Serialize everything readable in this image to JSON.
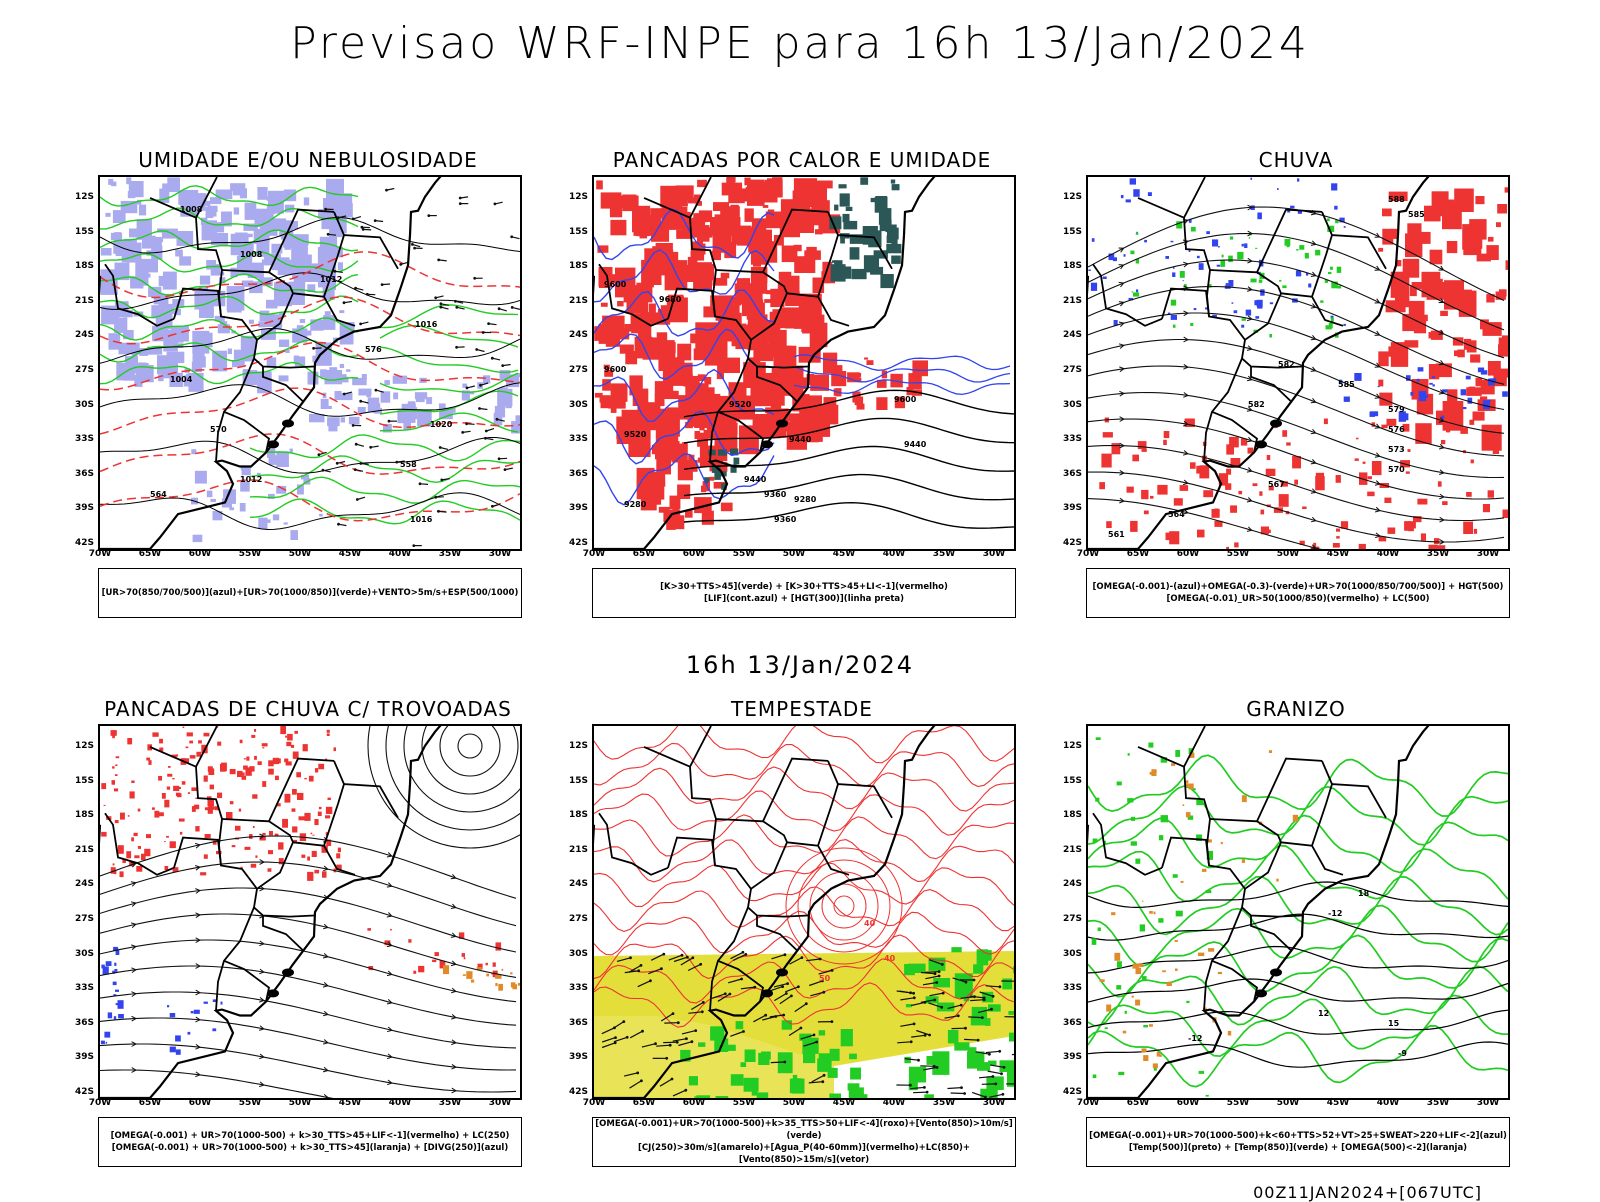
{
  "title": "Previsao WRF-INPE  para 16h 13/Jan/2024",
  "mid_title": "16h 13/Jan/2024",
  "footer": "00Z11JAN2024+[067UTC]",
  "lat_ticks": [
    "12S",
    "15S",
    "18S",
    "21S",
    "24S",
    "27S",
    "30S",
    "33S",
    "36S",
    "39S",
    "42S"
  ],
  "lon_ticks": [
    "70W",
    "65W",
    "60W",
    "55W",
    "50W",
    "45W",
    "40W",
    "35W",
    "30W"
  ],
  "colors": {
    "green": "#22cc22",
    "red": "#ee3333",
    "blue": "#3344ee",
    "lavender": "#aaaaee",
    "yellow": "#e4de3a",
    "darkteal": "#2b5757",
    "orange": "#e08a2a"
  },
  "panels": [
    {
      "title": "UMIDADE E/OU NEBULOSIDADE",
      "legend": [
        "[UR>70(850/700/500)](azul)+[UR>70(1000/850)](verde)+VENTO>5m/s+ESP(500/1000)"
      ],
      "contour_labels": [
        "1008",
        "1008",
        "1012",
        "1016",
        "1020",
        "1016",
        "1004",
        "576",
        "570",
        "564",
        "558",
        "1012"
      ]
    },
    {
      "title": "PANCADAS POR CALOR E UMIDADE",
      "legend": [
        "[K>30+TTS>45](verde) + [K>30+TTS>45+LI<-1](vermelho)",
        "[LIF](cont.azul) + [HGT(300)](linha preta)"
      ],
      "contour_labels": [
        "9680",
        "9600",
        "9600",
        "9520",
        "9440",
        "9440",
        "9360",
        "9280",
        "9280",
        "9600",
        "9520",
        "9440",
        "9360"
      ]
    },
    {
      "title": "CHUVA",
      "legend": [
        "[OMEGA(-0.001)-(azul)+OMEGA(-0.3)-(verde)+UR>70(1000/850/700/500)] + HGT(500)",
        "[OMEGA(-0.01)_UR>50(1000/850)(vermelho) + LC(500)"
      ],
      "contour_labels": [
        "588",
        "585",
        "582",
        "579",
        "576",
        "573",
        "570",
        "567",
        "564",
        "561",
        "585",
        "582"
      ]
    },
    {
      "title": "PANCADAS DE CHUVA C/ TROVOADAS",
      "legend": [
        "[OMEGA(-0.001) + UR>70(1000-500) + k>30_TTS>45+LIF<-1](vermelho) + LC(250)",
        "[OMEGA(-0.001) + UR>70(1000-500) + k>30_TTS>45](laranja) + [DIVG(250)](azul)"
      ],
      "contour_labels": []
    },
    {
      "title": "TEMPESTADE",
      "legend": [
        "[OMEGA(-0.001)+UR>70(1000-500)+k>35_TTS>50+LIF<-4](roxo)+[Vento(850)>10m/s](verde)",
        "[CJ(250)>30m/s](amarelo)+[Agua_P(40-60mm)](vermelho)+LC(850)+[Vento(850)>15m/s](vetor)"
      ],
      "contour_labels": [
        "40",
        "40",
        "50"
      ]
    },
    {
      "title": "GRANIZO",
      "legend": [
        "[OMEGA(-0.001)+UR>70(1000-500)+k<60+TTS>52+VT>25+SWEAT>220+LIF<-2](azul)",
        "[Temp(500)](preto) + [Temp(850)](verde) + [OMEGA(500)<-2](laranja)"
      ],
      "contour_labels": [
        "-12",
        "-12",
        "12",
        "15",
        "18",
        "-9"
      ]
    }
  ]
}
